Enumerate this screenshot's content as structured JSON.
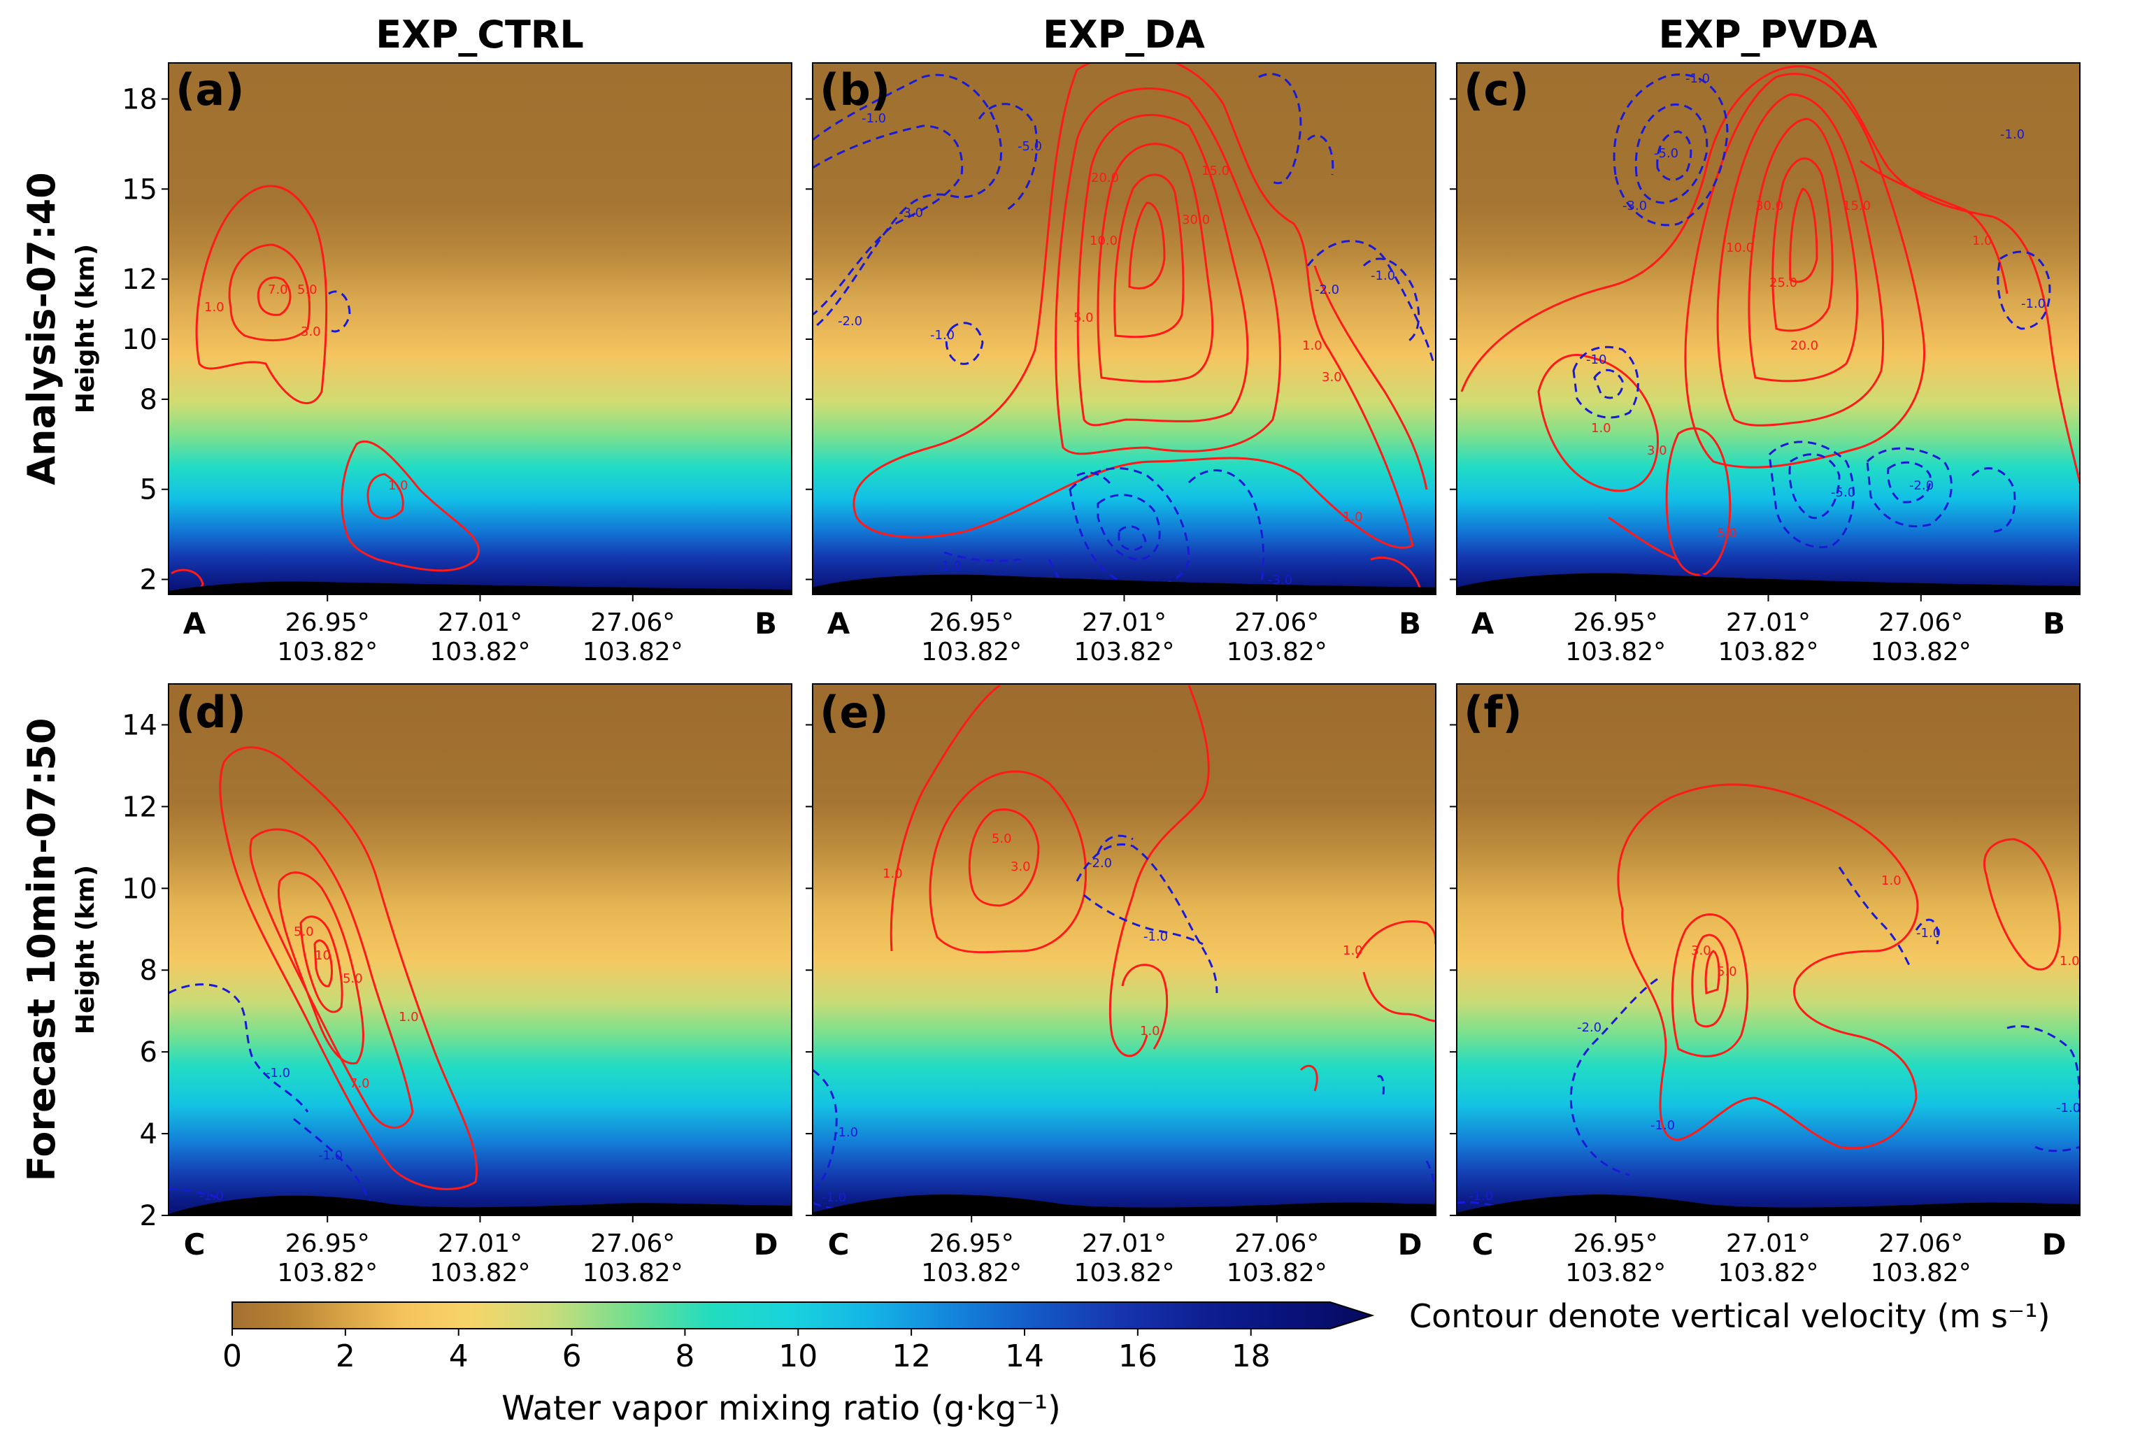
{
  "figure": {
    "columns": [
      "EXP_CTRL",
      "EXP_DA",
      "EXP_PVDA"
    ],
    "rows": [
      {
        "title": "Analysis-07:40",
        "subtitle": "Height (km)"
      },
      {
        "title": "Forecast 10min-07:50",
        "subtitle": "Height (km)"
      }
    ],
    "panel_labels": [
      "(a)",
      "(b)",
      "(c)",
      "(d)",
      "(e)",
      "(f)"
    ],
    "colorbar": {
      "ticks": [
        "0",
        "2",
        "4",
        "6",
        "8",
        "10",
        "12",
        "14",
        "16",
        "18"
      ],
      "title": "Water vapor mixing ratio (g·kg⁻¹)"
    },
    "contour_note": "Contour denote vertical velocity (m s⁻¹)"
  },
  "chart_data": [
    {
      "type": "heatmap",
      "panel": "(a)",
      "column": "EXP_CTRL",
      "row": "Analysis-07:40",
      "ylabel": "Height (km)",
      "ylim": [
        1.5,
        19.2
      ],
      "yticks": [
        2,
        5,
        8,
        10,
        12,
        15,
        18
      ],
      "x_endpoints": [
        "A",
        "B"
      ],
      "x_ticks": [
        {
          "lat": "26.95°",
          "lon": "103.82°"
        },
        {
          "lat": "27.01°",
          "lon": "103.82°"
        },
        {
          "lat": "27.06°",
          "lon": "103.82°"
        }
      ],
      "contour_labels_positive": [
        "1.0",
        "7.0",
        "5.0",
        "3.0",
        "1.0"
      ],
      "contour_labels_negative": []
    },
    {
      "type": "heatmap",
      "panel": "(b)",
      "column": "EXP_DA",
      "row": "Analysis-07:40",
      "ylim": [
        1.5,
        19.2
      ],
      "yticks": [
        2,
        5,
        8,
        10,
        12,
        15,
        18
      ],
      "x_endpoints": [
        "A",
        "B"
      ],
      "x_ticks": [
        {
          "lat": "26.95°",
          "lon": "103.82°"
        },
        {
          "lat": "27.01°",
          "lon": "103.82°"
        },
        {
          "lat": "27.06°",
          "lon": "103.82°"
        }
      ],
      "contour_labels_positive": [
        "20.0",
        "10.0",
        "5.0",
        "30.0",
        "15.0",
        "1.0",
        "3.0",
        "1.0"
      ],
      "contour_labels_negative": [
        "-1.0",
        "-5.0",
        "-3.0",
        "-2.0",
        "-1.0",
        "-2.0",
        "-1.0",
        "-3.0",
        "-1.0"
      ]
    },
    {
      "type": "heatmap",
      "panel": "(c)",
      "column": "EXP_PVDA",
      "row": "Analysis-07:40",
      "ylim": [
        1.5,
        19.2
      ],
      "yticks": [
        2,
        5,
        8,
        10,
        12,
        15,
        18
      ],
      "x_endpoints": [
        "A",
        "B"
      ],
      "x_ticks": [
        {
          "lat": "26.95°",
          "lon": "103.82°"
        },
        {
          "lat": "27.01°",
          "lon": "103.82°"
        },
        {
          "lat": "27.06°",
          "lon": "103.82°"
        }
      ],
      "contour_labels_positive": [
        "30.0",
        "10.0",
        "25.0",
        "20.0",
        "15.0",
        "1.0",
        "1.0",
        "3.0",
        "5.0"
      ],
      "contour_labels_negative": [
        "-1.0",
        "-5.0",
        "-3.0",
        "-1.0",
        "-10",
        "-1.0",
        "-5.0",
        "-2.0"
      ]
    },
    {
      "type": "heatmap",
      "panel": "(d)",
      "column": "EXP_CTRL",
      "row": "Forecast 10min-07:50",
      "ylabel": "Height (km)",
      "ylim": [
        2,
        15
      ],
      "yticks": [
        2,
        4,
        6,
        8,
        10,
        12,
        14
      ],
      "x_endpoints": [
        "C",
        "D"
      ],
      "x_ticks": [
        {
          "lat": "26.95°",
          "lon": "103.82°"
        },
        {
          "lat": "27.01°",
          "lon": "103.82°"
        },
        {
          "lat": "27.06°",
          "lon": "103.82°"
        }
      ],
      "contour_labels_positive": [
        "5.0",
        "10",
        "5.0",
        "7.0",
        "1.0"
      ],
      "contour_labels_negative": [
        "-1.0",
        "-1.0",
        "-1.0"
      ]
    },
    {
      "type": "heatmap",
      "panel": "(e)",
      "column": "EXP_DA",
      "row": "Forecast 10min-07:50",
      "ylim": [
        2,
        15
      ],
      "yticks": [
        2,
        4,
        6,
        8,
        10,
        12,
        14
      ],
      "x_endpoints": [
        "C",
        "D"
      ],
      "x_ticks": [
        {
          "lat": "26.95°",
          "lon": "103.82°"
        },
        {
          "lat": "27.01°",
          "lon": "103.82°"
        },
        {
          "lat": "27.06°",
          "lon": "103.82°"
        }
      ],
      "contour_labels_positive": [
        "5.0",
        "3.0",
        "1.0",
        "1.0",
        "1.0"
      ],
      "contour_labels_negative": [
        "-2.0",
        "-1.0",
        "-1.0",
        "-1.0"
      ]
    },
    {
      "type": "heatmap",
      "panel": "(f)",
      "column": "EXP_PVDA",
      "row": "Forecast 10min-07:50",
      "ylim": [
        2,
        15
      ],
      "yticks": [
        2,
        4,
        6,
        8,
        10,
        12,
        14
      ],
      "x_endpoints": [
        "C",
        "D"
      ],
      "x_ticks": [
        {
          "lat": "26.95°",
          "lon": "103.82°"
        },
        {
          "lat": "27.01°",
          "lon": "103.82°"
        },
        {
          "lat": "27.06°",
          "lon": "103.82°"
        }
      ],
      "contour_labels_positive": [
        "3.0",
        "5.0",
        "1.0",
        "1.0"
      ],
      "contour_labels_negative": [
        "-2.0",
        "-1.0",
        "-1.0",
        "-1.0",
        "-1.0"
      ]
    }
  ],
  "colors": {
    "dry": "#9b6b2e",
    "moist_mid": "#f4c460",
    "moist_low": "#17d8cc",
    "wettest": "#0d1a84",
    "updraft": "#ff1a1a",
    "downdraft": "#1a1ad6",
    "terrain": "#000000"
  }
}
